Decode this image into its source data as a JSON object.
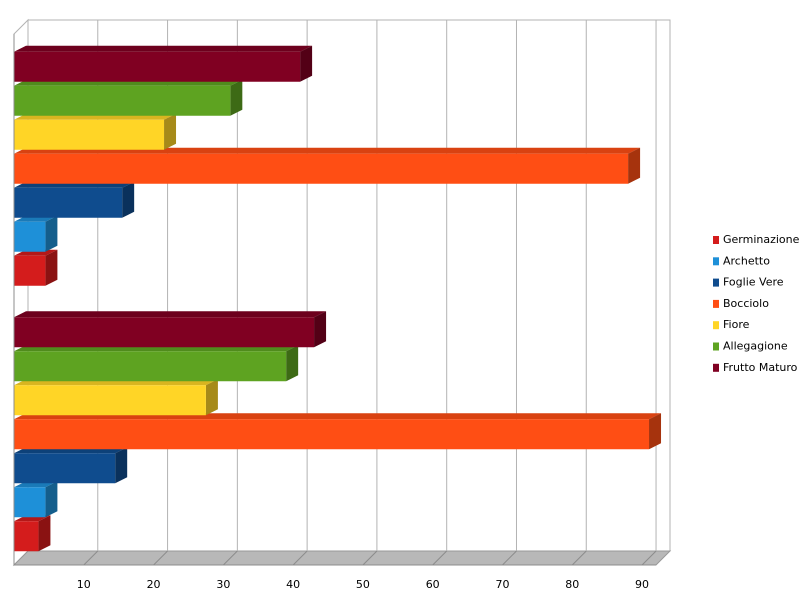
{
  "chart_data": {
    "type": "bar3d",
    "orientation": "horizontal",
    "categories": [
      null,
      null
    ],
    "series": [
      {
        "name": "Germinazione",
        "color": "#d41c1c",
        "values": [
          3.5,
          4.5
        ]
      },
      {
        "name": "Archetto",
        "color": "#1e90d8",
        "values": [
          4.5,
          4.5
        ]
      },
      {
        "name": "Foglie Vere",
        "color": "#0f4c8e",
        "values": [
          14.5,
          15.5
        ]
      },
      {
        "name": "Bocciolo",
        "color": "#ff4e14",
        "values": [
          91,
          88
        ]
      },
      {
        "name": "Fiore",
        "color": "#ffd526",
        "values": [
          27.5,
          21.5
        ]
      },
      {
        "name": "Allegagione",
        "color": "#5ea321",
        "values": [
          39,
          31
        ]
      },
      {
        "name": "Frutto Maturo",
        "color": "#800022",
        "values": [
          43,
          41
        ]
      }
    ],
    "xlim": [
      0,
      92
    ],
    "xticks": [
      10,
      20,
      30,
      40,
      50,
      60,
      70,
      80,
      90
    ],
    "grid": true,
    "legend": "right"
  }
}
